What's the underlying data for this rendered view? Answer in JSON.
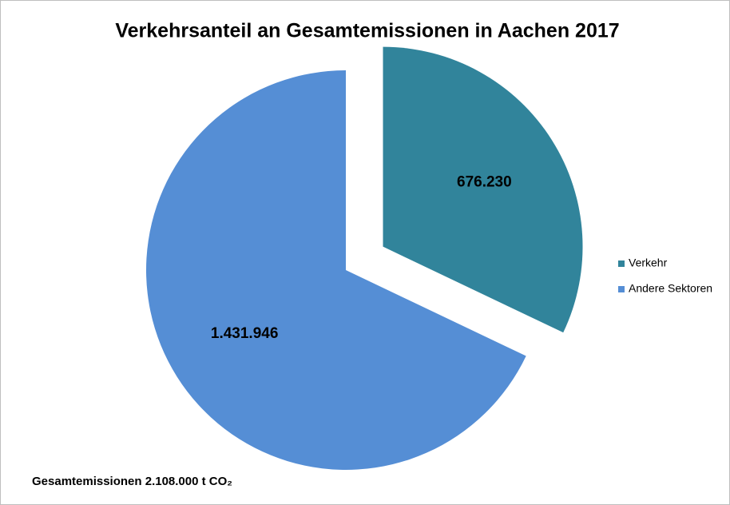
{
  "chart_data": {
    "type": "pie",
    "title": "Verkehrsanteil an Gesamtemissionen in Aachen 2017",
    "categories": [
      "Verkehr",
      "Andere Sektoren"
    ],
    "values": [
      676230,
      1431946
    ],
    "value_labels": [
      "676.230",
      "1.431.946"
    ],
    "colors": [
      "#31849b",
      "#558ed5"
    ],
    "legend": "right",
    "annotation": "Gesamtemissionen 2.108.000 t CO₂"
  }
}
